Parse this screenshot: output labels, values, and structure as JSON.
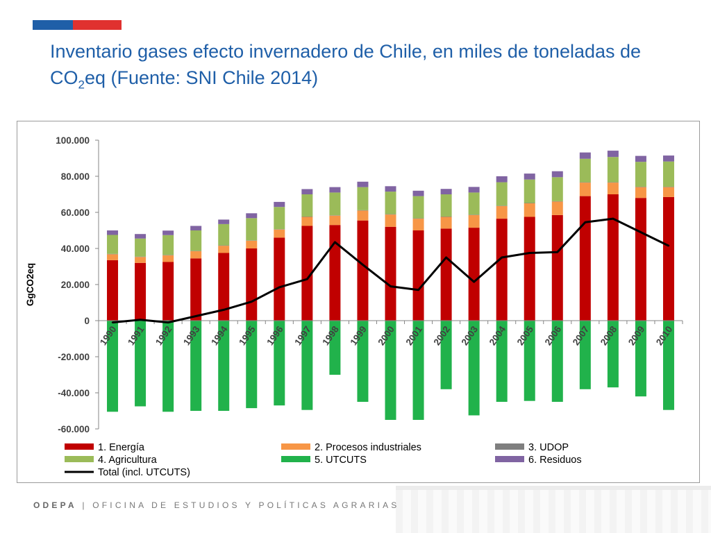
{
  "slide": {
    "title_main": "Inventario gases efecto invernadero de Chile, en miles de toneladas de CO",
    "title_sub": "2",
    "title_rest": "eq (Fuente: SNI Chile 2014)",
    "footer_org": "ODEPA",
    "footer_sep": "|",
    "footer_name": "OFICINA DE ESTUDIOS Y POLÍTICAS AGRARIAS",
    "flag_colors": [
      "#1f5fa8",
      "#e0312f"
    ]
  },
  "chart_data": {
    "type": "bar",
    "stacked": true,
    "title": "",
    "xlabel": "",
    "ylabel": "GgCO2eq",
    "ylim": [
      -60000,
      100000
    ],
    "yticks": [
      100000,
      80000,
      60000,
      40000,
      20000,
      0,
      -20000,
      -40000,
      -60000
    ],
    "ytick_labels": [
      "100.000",
      "80.000",
      "60.000",
      "40.000",
      "20.000",
      "0",
      "-20.000",
      "-40.000",
      "-60.000"
    ],
    "grid": false,
    "legend_position": "bottom",
    "categories": [
      "1990",
      "1991",
      "1992",
      "1993",
      "1994",
      "1995",
      "1996",
      "1997",
      "1998",
      "1999",
      "2000",
      "2001",
      "2002",
      "2003",
      "2004",
      "2005",
      "2006",
      "2007",
      "2008",
      "2009",
      "2010"
    ],
    "series": [
      {
        "name": "1. Energía",
        "color": "#c00000",
        "values": [
          33500,
          32000,
          32500,
          34500,
          37500,
          40000,
          46000,
          52500,
          53000,
          55500,
          52000,
          50000,
          51000,
          51500,
          56500,
          57500,
          58500,
          69000,
          70000,
          68000,
          68500
        ]
      },
      {
        "name": "2. Procesos industriales",
        "color": "#f79646",
        "values": [
          3300,
          3300,
          3700,
          4000,
          4000,
          4300,
          4500,
          5000,
          5200,
          5500,
          6800,
          6500,
          6500,
          7000,
          7000,
          7500,
          7500,
          7500,
          6500,
          6000,
          5500
        ]
      },
      {
        "name": "3. UDOP",
        "color": "#7f7f7f",
        "values": [
          200,
          200,
          200,
          200,
          200,
          200,
          200,
          200,
          200,
          200,
          200,
          200,
          200,
          200,
          200,
          200,
          200,
          200,
          200,
          200,
          200
        ]
      },
      {
        "name": "4. Agricultura",
        "color": "#9bbb59",
        "values": [
          10500,
          10000,
          11000,
          11300,
          11800,
          12300,
          12300,
          12300,
          12600,
          12800,
          12500,
          12300,
          12300,
          12300,
          13000,
          13000,
          13300,
          13000,
          14000,
          13800,
          14000
        ]
      },
      {
        "name": "5. UTCUTS",
        "color": "#21b24b",
        "values": [
          -50500,
          -47500,
          -50500,
          -50000,
          -50000,
          -48500,
          -47000,
          -49500,
          -30000,
          -45000,
          -55000,
          -55000,
          -38000,
          -52500,
          -45000,
          -44500,
          -45000,
          -38000,
          -37000,
          -42000,
          -49500
        ]
      },
      {
        "name": "6. Residuos",
        "color": "#8064a2",
        "values": [
          2500,
          2500,
          2500,
          2500,
          2500,
          2700,
          2800,
          2900,
          3000,
          3000,
          3000,
          3000,
          3000,
          3100,
          3300,
          3300,
          3300,
          3500,
          3500,
          3300,
          3300
        ]
      }
    ],
    "line_series": {
      "name": "Total (incl. UTCUTS)",
      "color": "#000000",
      "values": [
        -1000,
        500,
        -1000,
        2500,
        6000,
        10500,
        18500,
        23000,
        43500,
        31000,
        19000,
        17000,
        35000,
        21500,
        35000,
        37500,
        38000,
        54500,
        56500,
        49000,
        41500
      ]
    }
  }
}
